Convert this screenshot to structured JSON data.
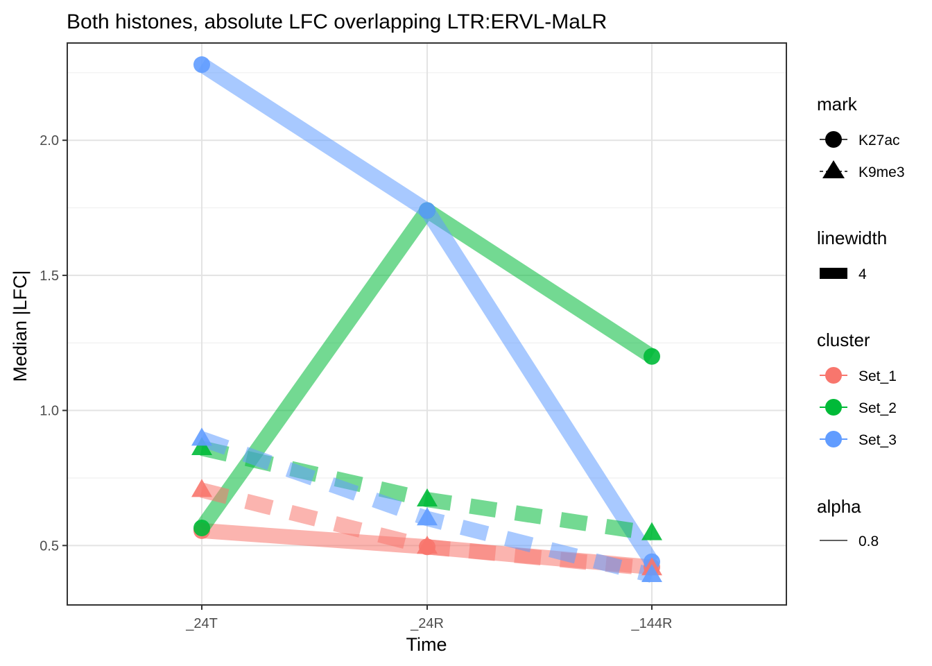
{
  "chart_data": {
    "type": "line",
    "title": "Both histones, absolute LFC overlapping LTR:ERVL-MaLR",
    "xlabel": "Time",
    "ylabel": "Median |LFC|",
    "categories": [
      "_24T",
      "_24R",
      "_144R"
    ],
    "ylim": [
      0.28,
      2.36
    ],
    "yticks": [
      0.5,
      1.0,
      1.5,
      2.0
    ],
    "ytick_labels": [
      "0.5",
      "1.0",
      "1.5",
      "2.0"
    ],
    "grid": true,
    "legend_position": "right",
    "series": [
      {
        "mark": "K27ac",
        "cluster": "Set_1",
        "values": [
          0.555,
          0.495,
          0.42
        ]
      },
      {
        "mark": "K27ac",
        "cluster": "Set_2",
        "values": [
          0.565,
          1.74,
          1.2
        ]
      },
      {
        "mark": "K27ac",
        "cluster": "Set_3",
        "values": [
          2.28,
          1.74,
          0.44
        ]
      },
      {
        "mark": "K9me3",
        "cluster": "Set_1",
        "values": [
          0.705,
          0.495,
          0.415
        ]
      },
      {
        "mark": "K9me3",
        "cluster": "Set_2",
        "values": [
          0.86,
          0.67,
          0.545
        ]
      },
      {
        "mark": "K9me3",
        "cluster": "Set_3",
        "values": [
          0.895,
          0.6,
          0.39
        ]
      }
    ],
    "legend": {
      "mark": {
        "title": "mark",
        "items": [
          {
            "label": "K27ac",
            "shape": "circle"
          },
          {
            "label": "K9me3",
            "shape": "triangle"
          }
        ]
      },
      "linewidth": {
        "title": "linewidth",
        "items": [
          {
            "label": "4"
          }
        ]
      },
      "cluster": {
        "title": "cluster",
        "items": [
          {
            "label": "Set_1",
            "color": "#F8766D"
          },
          {
            "label": "Set_2",
            "color": "#00BA38"
          },
          {
            "label": "Set_3",
            "color": "#619CFF"
          }
        ]
      },
      "alpha": {
        "title": "alpha",
        "items": [
          {
            "label": "0.8"
          }
        ]
      }
    },
    "colors": {
      "Set_1": "#F8766D",
      "Set_2": "#00BA38",
      "Set_3": "#619CFF"
    }
  }
}
